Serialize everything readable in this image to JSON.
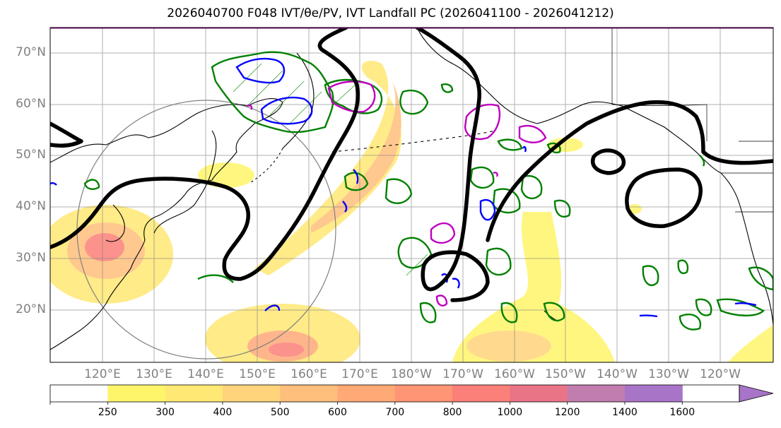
{
  "title": "2026040700 F048 IVT/θe/PV, IVT Landfall PC (2026041100 - 2026041212)",
  "lat_labels": [
    "70°N",
    "60°N",
    "50°N",
    "40°N",
    "30°N",
    "20°N"
  ],
  "lon_labels": [
    "120°E",
    "130°E",
    "140°E",
    "150°E",
    "160°E",
    "170°E",
    "180°W",
    "170°W",
    "160°W",
    "150°W",
    "140°W",
    "130°W",
    "120°W"
  ],
  "colorbar": {
    "ticks": [
      "250",
      "300",
      "400",
      "500",
      "600",
      "700",
      "800",
      "1000",
      "1200",
      "1400",
      "1600"
    ],
    "colors": [
      "#ffffff",
      "#fff56b",
      "#ffe874",
      "#ffd47b",
      "#ffbf7c",
      "#ffa977",
      "#ff9575",
      "#fb8079",
      "#e97486",
      "#c07dad",
      "#a874c8"
    ]
  },
  "colors": {
    "contour_black": "#000000",
    "pv_green": "#008000",
    "pv_blue": "#0000ff",
    "pv_magenta": "#bf00bf",
    "grid": "#808080",
    "coast": "#000000"
  }
}
